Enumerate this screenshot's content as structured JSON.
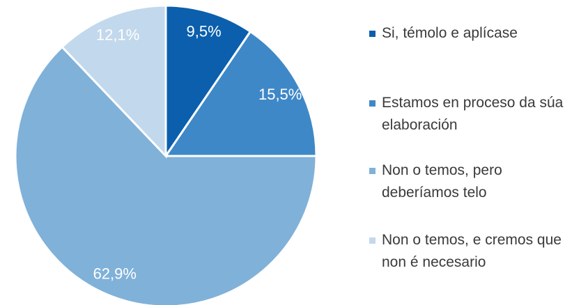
{
  "chart_data": {
    "type": "pie",
    "categories": [
      "Si, témolo e aplícase",
      "Estamos en proceso da súa elaboración",
      "Non o temos, pero deberíamos telo",
      "Non o temos, e cremos que non é necesario"
    ],
    "values": [
      9.5,
      15.5,
      62.9,
      12.1
    ],
    "value_labels": [
      "9,5%",
      "15,5%",
      "62,9%",
      "12,1%"
    ],
    "colors": [
      "#0b5fad",
      "#3f88c7",
      "#80b1d9",
      "#c2d8ec"
    ],
    "legend": "right"
  }
}
